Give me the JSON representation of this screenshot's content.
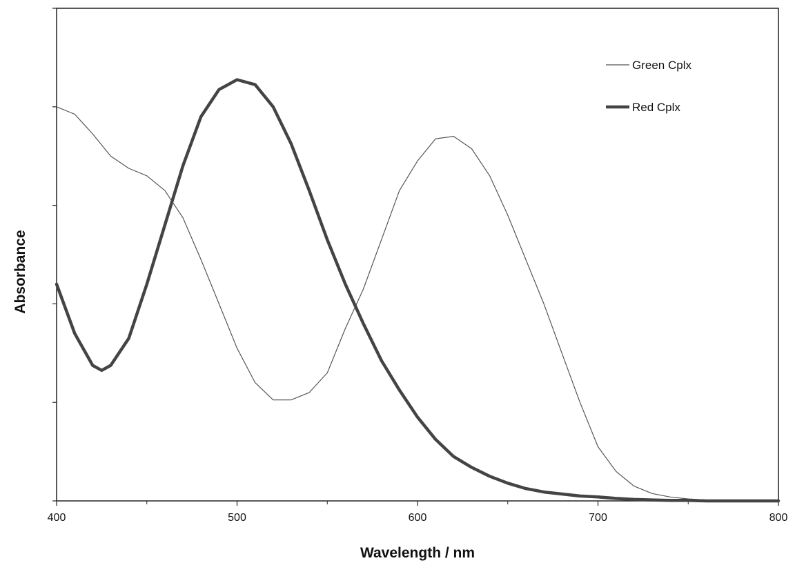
{
  "chart_data": {
    "type": "line",
    "title": "",
    "xlabel": "Wavelength / nm",
    "ylabel": "Absorbance",
    "xlim": [
      400,
      800
    ],
    "ylim": [
      0,
      1
    ],
    "x_ticks": [
      400,
      500,
      600,
      700,
      800
    ],
    "y_tick_values": [
      0,
      0.2,
      0.4,
      0.6,
      0.8,
      1.0
    ],
    "y_tick_labels_shown": false,
    "grid": false,
    "legend_position": "top-right",
    "series": [
      {
        "name": "Green Cplx",
        "color": "#555555",
        "style": "thin",
        "points": [
          [
            400,
            0.8
          ],
          [
            410,
            0.785
          ],
          [
            420,
            0.745
          ],
          [
            430,
            0.7
          ],
          [
            440,
            0.675
          ],
          [
            450,
            0.66
          ],
          [
            460,
            0.63
          ],
          [
            470,
            0.575
          ],
          [
            480,
            0.49
          ],
          [
            490,
            0.4
          ],
          [
            500,
            0.31
          ],
          [
            510,
            0.24
          ],
          [
            520,
            0.205
          ],
          [
            530,
            0.205
          ],
          [
            540,
            0.22
          ],
          [
            550,
            0.26
          ],
          [
            560,
            0.35
          ],
          [
            570,
            0.43
          ],
          [
            580,
            0.53
          ],
          [
            590,
            0.63
          ],
          [
            600,
            0.69
          ],
          [
            610,
            0.735
          ],
          [
            620,
            0.74
          ],
          [
            630,
            0.715
          ],
          [
            640,
            0.66
          ],
          [
            650,
            0.58
          ],
          [
            660,
            0.49
          ],
          [
            670,
            0.4
          ],
          [
            680,
            0.3
          ],
          [
            690,
            0.2
          ],
          [
            700,
            0.11
          ],
          [
            710,
            0.06
          ],
          [
            720,
            0.03
          ],
          [
            730,
            0.015
          ],
          [
            740,
            0.008
          ],
          [
            750,
            0.004
          ],
          [
            760,
            0.002
          ],
          [
            770,
            0.001
          ],
          [
            780,
            0.001
          ],
          [
            790,
            0.0
          ],
          [
            800,
            0.0
          ]
        ]
      },
      {
        "name": "Red Cplx",
        "color": "#444444",
        "style": "thick",
        "points": [
          [
            400,
            0.44
          ],
          [
            410,
            0.34
          ],
          [
            420,
            0.275
          ],
          [
            425,
            0.265
          ],
          [
            430,
            0.275
          ],
          [
            440,
            0.33
          ],
          [
            450,
            0.44
          ],
          [
            460,
            0.56
          ],
          [
            470,
            0.68
          ],
          [
            480,
            0.78
          ],
          [
            490,
            0.835
          ],
          [
            500,
            0.855
          ],
          [
            510,
            0.845
          ],
          [
            520,
            0.8
          ],
          [
            530,
            0.725
          ],
          [
            540,
            0.63
          ],
          [
            550,
            0.53
          ],
          [
            560,
            0.44
          ],
          [
            570,
            0.36
          ],
          [
            580,
            0.285
          ],
          [
            590,
            0.225
          ],
          [
            600,
            0.17
          ],
          [
            610,
            0.125
          ],
          [
            620,
            0.09
          ],
          [
            630,
            0.068
          ],
          [
            640,
            0.05
          ],
          [
            650,
            0.036
          ],
          [
            660,
            0.025
          ],
          [
            670,
            0.018
          ],
          [
            680,
            0.014
          ],
          [
            690,
            0.01
          ],
          [
            700,
            0.008
          ],
          [
            710,
            0.005
          ],
          [
            720,
            0.003
          ],
          [
            730,
            0.002
          ],
          [
            740,
            0.001
          ],
          [
            750,
            0.001
          ],
          [
            760,
            0.0
          ],
          [
            770,
            0.0
          ],
          [
            780,
            0.0
          ],
          [
            800,
            0.0
          ]
        ]
      }
    ]
  }
}
